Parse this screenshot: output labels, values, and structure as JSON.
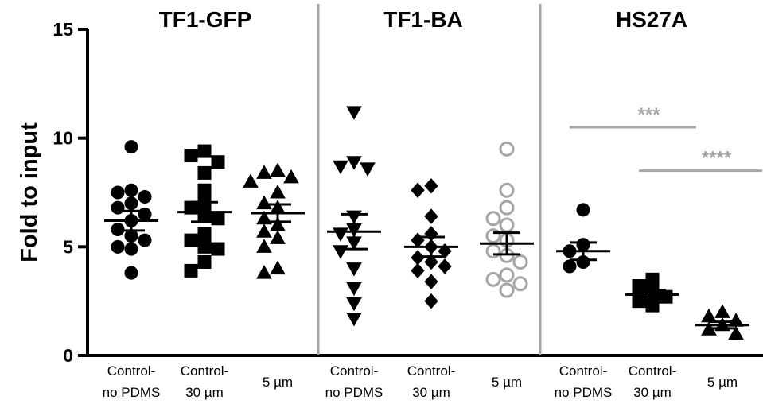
{
  "chart_data": {
    "type": "scatter",
    "ylabel": "Fold  to input",
    "ylim": [
      0,
      15
    ],
    "yticks": [
      "0",
      "5",
      "10",
      "15"
    ],
    "panels": [
      {
        "title": "TF1-GFP",
        "groups": [
          {
            "label_line1": "Control-",
            "label_line2": "no PDMS",
            "marker": "circle",
            "filled": true,
            "mean": 6.2,
            "sem": 0.45,
            "values": [
              9.6,
              7.6,
              7.5,
              7.3,
              7.0,
              6.8,
              6.5,
              6.2,
              5.8,
              5.5,
              5.3,
              5.0,
              4.9,
              3.8
            ]
          },
          {
            "label_line1": "Control-",
            "label_line2": "30 µm",
            "marker": "square",
            "filled": true,
            "mean": 6.6,
            "sem": 0.45,
            "values": [
              9.4,
              9.2,
              8.9,
              8.4,
              7.6,
              7.0,
              6.8,
              6.4,
              6.3,
              5.6,
              5.3,
              5.0,
              4.9,
              4.3,
              3.9
            ]
          },
          {
            "label_line1": "5 µm",
            "label_line2": "",
            "marker": "triangle-up",
            "filled": true,
            "mean": 6.55,
            "sem": 0.4,
            "values": [
              8.5,
              8.4,
              8.2,
              8.0,
              7.5,
              7.0,
              6.8,
              6.3,
              6.0,
              5.7,
              5.4,
              5.0,
              4.0,
              3.8
            ]
          }
        ]
      },
      {
        "title": "TF1-BA",
        "groups": [
          {
            "label_line1": "Control-",
            "label_line2": "no PDMS",
            "marker": "triangle-down",
            "filled": true,
            "mean": 5.7,
            "sem": 0.8,
            "values": [
              11.2,
              8.9,
              8.7,
              8.6,
              6.4,
              5.8,
              5.6,
              5.2,
              4.8,
              4.0,
              3.1,
              2.4,
              1.7
            ]
          },
          {
            "label_line1": "Control-",
            "label_line2": "30 µm",
            "marker": "diamond",
            "filled": true,
            "mean": 5.0,
            "sem": 0.45,
            "values": [
              7.8,
              7.6,
              6.4,
              5.6,
              5.3,
              5.0,
              4.8,
              4.5,
              4.3,
              4.1,
              3.9,
              3.4,
              2.5
            ]
          },
          {
            "label_line1": "5 µm",
            "label_line2": "",
            "marker": "circle",
            "filled": false,
            "mean": 5.15,
            "sem": 0.5,
            "values": [
              9.5,
              7.6,
              6.8,
              6.3,
              6.0,
              5.5,
              5.3,
              4.8,
              4.6,
              4.3,
              3.7,
              3.5,
              3.3,
              3.0
            ]
          }
        ]
      },
      {
        "title": "HS27A",
        "groups": [
          {
            "label_line1": "Control-",
            "label_line2": "no PDMS",
            "marker": "circle",
            "filled": true,
            "mean": 4.8,
            "sem": 0.4,
            "values": [
              6.7,
              5.1,
              4.8,
              4.3,
              4.1
            ]
          },
          {
            "label_line1": "Control-",
            "label_line2": "30 µm",
            "marker": "square",
            "filled": true,
            "mean": 2.8,
            "sem": 0.2,
            "values": [
              3.5,
              3.2,
              2.9,
              2.7,
              2.5,
              2.3
            ]
          },
          {
            "label_line1": "5 µm",
            "label_line2": "",
            "marker": "triangle-up",
            "filled": true,
            "mean": 1.4,
            "sem": 0.15,
            "values": [
              2.0,
              1.8,
              1.6,
              1.4,
              1.2,
              1.0
            ]
          }
        ]
      }
    ],
    "significance": [
      {
        "label": "***",
        "panel": 2,
        "from_group": 0,
        "to_group": 1,
        "y": 10.5
      },
      {
        "label": "****",
        "panel": 2,
        "from_group": 1,
        "to_group": 2,
        "y": 8.5
      }
    ]
  }
}
